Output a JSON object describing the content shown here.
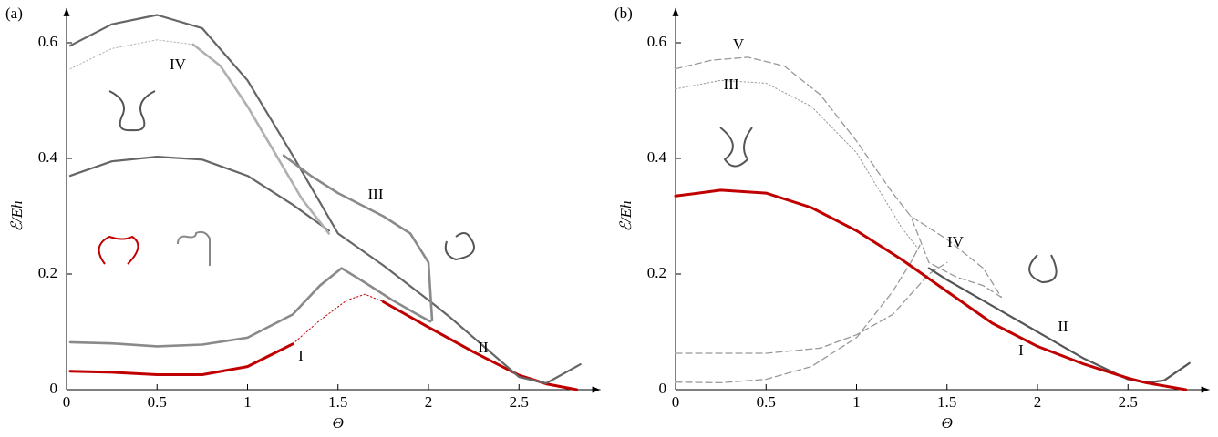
{
  "chart_data": [
    {
      "type": "line",
      "label": "(a)",
      "x_label": "Θ",
      "y_label": "ℰ/Eh",
      "xlim": [
        0,
        2.95
      ],
      "ylim": [
        0,
        0.66
      ],
      "xticks": [
        0,
        0.5,
        1,
        1.5,
        2,
        2.5
      ],
      "yticks": [
        0,
        0.2,
        0.4,
        0.6
      ],
      "series": [
        {
          "name": "I",
          "color": "#c00000",
          "style": "solid",
          "width": 3,
          "x": [
            0.02,
            0.25,
            0.5,
            0.75,
            1.0,
            1.25,
            1.5,
            1.75,
            2.0,
            2.25,
            2.5,
            2.65,
            2.82
          ],
          "values": [
            0.032,
            0.03,
            0.026,
            0.026,
            0.04,
            0.079,
            null,
            0.152,
            0.108,
            0.065,
            0.025,
            0.01,
            0.0
          ]
        },
        {
          "color": "#c00000",
          "style": "dotted",
          "width": 1,
          "x": [
            1.25,
            1.4,
            1.55,
            1.65,
            1.75
          ],
          "values": [
            0.079,
            0.12,
            0.155,
            0.165,
            0.152
          ]
        },
        {
          "name": "II",
          "color": "#666666",
          "style": "solid",
          "width": 2.2,
          "x": [
            0.02,
            0.25,
            0.5,
            0.75,
            1.0,
            1.25,
            1.5,
            1.75,
            2.0,
            2.12,
            2.25,
            2.5,
            2.65,
            2.84
          ],
          "values": [
            0.595,
            0.632,
            0.648,
            0.625,
            0.535,
            0.405,
            0.27,
            0.215,
            0.155,
            0.125,
            0.09,
            0.022,
            0.011,
            0.044
          ]
        },
        {
          "color": "#666666",
          "style": "solid",
          "width": 2.2,
          "x": [
            0.02,
            0.25,
            0.5,
            0.75,
            1.0,
            1.25,
            1.45
          ],
          "values": [
            0.37,
            0.395,
            0.403,
            0.398,
            0.37,
            0.32,
            0.275
          ]
        },
        {
          "color": "#b0b0b0",
          "style": "dotted",
          "width": 1,
          "x": [
            0.02,
            0.25,
            0.5,
            0.7
          ],
          "values": [
            0.555,
            0.59,
            0.605,
            0.597
          ]
        },
        {
          "name": "IV",
          "color": "#b0b0b0",
          "style": "solid",
          "width": 2.6,
          "x": [
            0.7,
            0.85,
            1.0,
            1.15,
            1.3,
            1.45
          ],
          "values": [
            0.597,
            0.56,
            0.49,
            0.41,
            0.33,
            0.27
          ]
        },
        {
          "name": "III",
          "color": "#8a8a8a",
          "style": "solid",
          "width": 2.6,
          "x": [
            1.2,
            1.35,
            1.5,
            1.75,
            1.9,
            2.0,
            2.02
          ],
          "values": [
            0.405,
            0.37,
            0.34,
            0.3,
            0.27,
            0.22,
            0.12
          ]
        },
        {
          "color": "#8a8a8a",
          "style": "solid",
          "width": 2.6,
          "x": [
            0.02,
            0.25,
            0.5,
            0.75,
            1.0,
            1.25,
            1.4,
            1.52,
            1.65,
            1.8,
            1.95,
            2.01
          ],
          "values": [
            0.082,
            0.08,
            0.075,
            0.078,
            0.09,
            0.13,
            0.18,
            0.21,
            0.185,
            0.155,
            0.128,
            0.118
          ]
        }
      ]
    },
    {
      "type": "line",
      "label": "(b)",
      "x_label": "Θ",
      "y_label": "ℰ/Eh",
      "xlim": [
        0,
        2.95
      ],
      "ylim": [
        0,
        0.66
      ],
      "xticks": [
        0,
        0.5,
        1,
        1.5,
        2,
        2.5
      ],
      "yticks": [
        0,
        0.2,
        0.4,
        0.6
      ],
      "series": [
        {
          "name": "V",
          "color": "#999999",
          "style": "dashed",
          "width": 1.3,
          "x": [
            0,
            0.2,
            0.4,
            0.6,
            0.8,
            1.0,
            1.2,
            1.3,
            1.5,
            1.7,
            1.8
          ],
          "values": [
            0.555,
            0.57,
            0.575,
            0.56,
            0.51,
            0.43,
            0.34,
            0.3,
            0.26,
            0.21,
            0.16
          ]
        },
        {
          "name": "IV",
          "color": "#999999",
          "style": "dashed",
          "width": 1.3,
          "x": [
            1.8,
            1.7,
            1.55,
            1.4,
            1.3
          ],
          "values": [
            0.16,
            0.18,
            0.195,
            0.22,
            0.3
          ]
        },
        {
          "name": "III",
          "color": "#999999",
          "style": "dotted",
          "width": 1,
          "x": [
            0,
            0.25,
            0.5,
            0.75,
            1.0,
            1.25,
            1.35
          ],
          "values": [
            0.52,
            0.535,
            0.53,
            0.49,
            0.41,
            0.28,
            0.24
          ]
        },
        {
          "color": "#999999",
          "style": "dashed",
          "width": 1.3,
          "x": [
            0,
            0.25,
            0.5,
            0.75,
            1.0,
            1.2,
            1.3,
            1.35
          ],
          "values": [
            0.013,
            0.012,
            0.018,
            0.04,
            0.09,
            0.17,
            0.22,
            0.25
          ]
        },
        {
          "color": "#999999",
          "style": "dashed",
          "width": 1.3,
          "x": [
            0,
            0.5,
            0.8,
            1.0,
            1.2,
            1.4,
            1.5
          ],
          "values": [
            0.063,
            0.063,
            0.072,
            0.095,
            0.13,
            0.2,
            0.22
          ]
        },
        {
          "name": "II",
          "color": "#555555",
          "style": "solid",
          "width": 2.2,
          "x": [
            1.4,
            1.5,
            1.75,
            2.0,
            2.25,
            2.5,
            2.6,
            2.7,
            2.84
          ],
          "values": [
            0.21,
            0.19,
            0.145,
            0.1,
            0.055,
            0.018,
            0.012,
            0.016,
            0.046
          ]
        },
        {
          "name": "I",
          "color": "#c00000",
          "style": "solid",
          "width": 3,
          "x": [
            0,
            0.25,
            0.5,
            0.75,
            1.0,
            1.25,
            1.5,
            1.75,
            2.0,
            2.25,
            2.5,
            2.6,
            2.82
          ],
          "values": [
            0.335,
            0.345,
            0.34,
            0.315,
            0.275,
            0.225,
            0.17,
            0.115,
            0.075,
            0.045,
            0.02,
            0.012,
            0.0
          ]
        }
      ]
    }
  ]
}
